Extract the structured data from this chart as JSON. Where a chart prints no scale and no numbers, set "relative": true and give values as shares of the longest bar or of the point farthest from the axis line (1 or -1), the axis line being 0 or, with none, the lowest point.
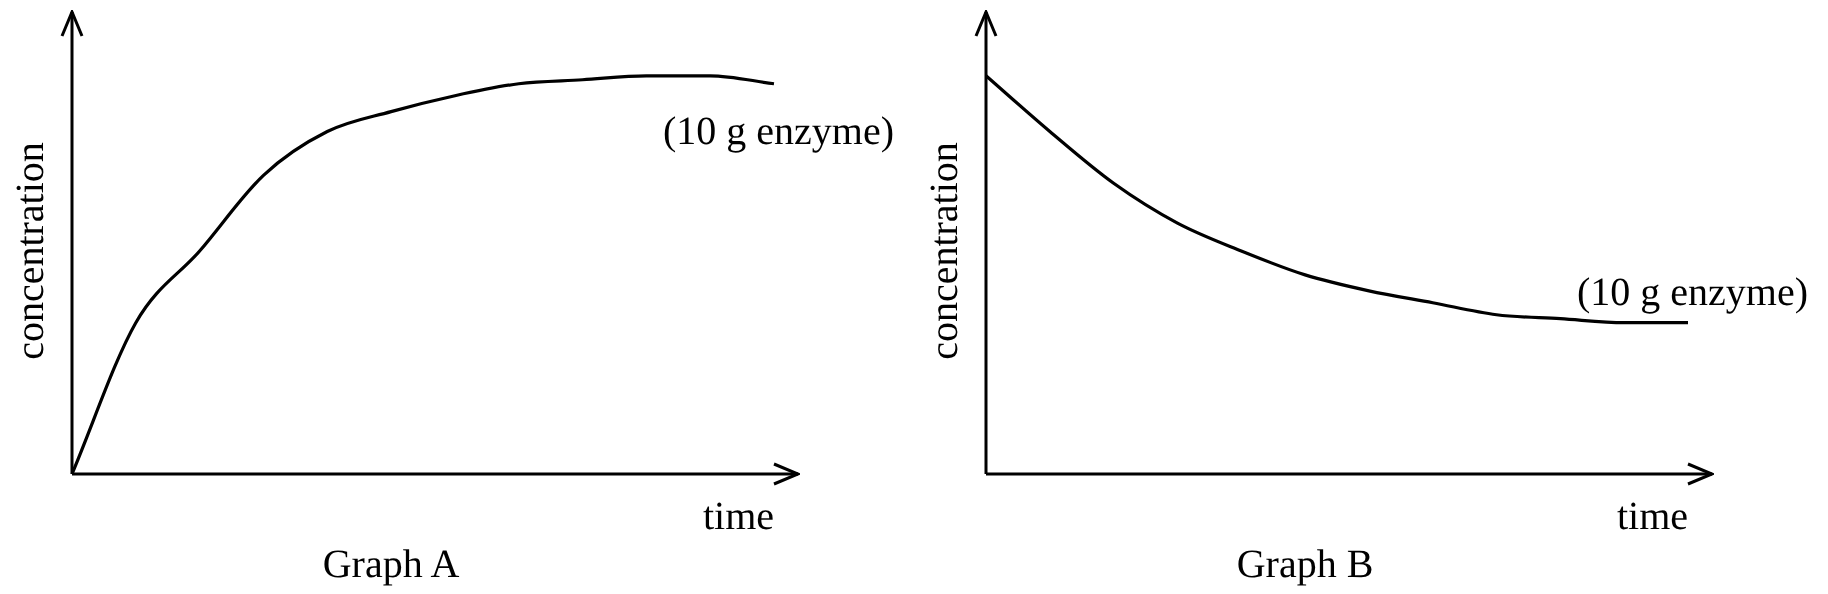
{
  "chart_data": [
    {
      "type": "line",
      "title": "Graph A",
      "xlabel": "time",
      "ylabel": "concentration",
      "relative": true,
      "tick_labels": false,
      "grid": false,
      "legend": false,
      "marker": "none",
      "annotations": [
        "(10 g enzyme)"
      ],
      "categories": [
        null,
        null,
        null,
        null,
        null,
        null,
        null,
        null,
        null,
        null,
        null,
        null
      ],
      "series": [
        {
          "color": "#000000",
          "values": [
            0,
            0.38,
            0.56,
            0.75,
            0.86,
            0.91,
            0.95,
            0.98,
            0.99,
            1,
            1,
            0.98
          ]
        }
      ]
    },
    {
      "type": "line",
      "title": "Graph B",
      "xlabel": "time",
      "ylabel": "concentration",
      "relative": true,
      "tick_labels": false,
      "grid": false,
      "legend": false,
      "marker": "none",
      "annotations": [
        "(10 g enzyme)"
      ],
      "categories": [
        null,
        null,
        null,
        null,
        null,
        null,
        null,
        null,
        null,
        null,
        null,
        null
      ],
      "series": [
        {
          "color": "#000000",
          "values": [
            1,
            0.86,
            0.73,
            0.63,
            0.56,
            0.5,
            0.46,
            0.43,
            0.4,
            0.39,
            0.38,
            0.38
          ]
        }
      ]
    }
  ]
}
